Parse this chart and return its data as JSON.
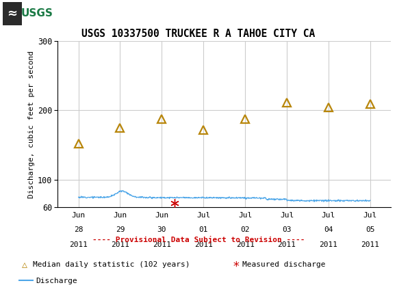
{
  "title": "USGS 10337500 TRUCKEE R A TAHOE CITY CA",
  "header_bg_color": "#1b7a45",
  "ylabel": "Discharge, cubic feet per second",
  "ylim": [
    60,
    300
  ],
  "yticks": [
    60,
    100,
    200,
    300
  ],
  "median_x": [
    0.0,
    1.0,
    2.0,
    3.0,
    4.0,
    5.0,
    6.0,
    7.0
  ],
  "median_y": [
    152,
    175,
    188,
    172,
    188,
    211,
    204,
    209
  ],
  "median_color": "#b8860b",
  "measured_x": [
    2.3
  ],
  "measured_y": [
    66
  ],
  "measured_color": "#cc0000",
  "discharge_color": "#4da6e8",
  "provisional_color": "#cc0000",
  "tick_labels": [
    [
      "Jun",
      "28",
      "2011"
    ],
    [
      "Jun",
      "29",
      "2011"
    ],
    [
      "Jun",
      "30",
      "2011"
    ],
    [
      "Jul",
      "01",
      "2011"
    ],
    [
      "Jul",
      "02",
      "2011"
    ],
    [
      "Jul",
      "03",
      "2011"
    ],
    [
      "Jul",
      "04",
      "2011"
    ],
    [
      "Jul",
      "05",
      "2011"
    ]
  ],
  "x_positions": [
    0.0,
    1.0,
    2.0,
    3.0,
    4.0,
    5.0,
    6.0,
    7.0
  ],
  "grid_color": "#cccccc",
  "background_color": "#ffffff"
}
